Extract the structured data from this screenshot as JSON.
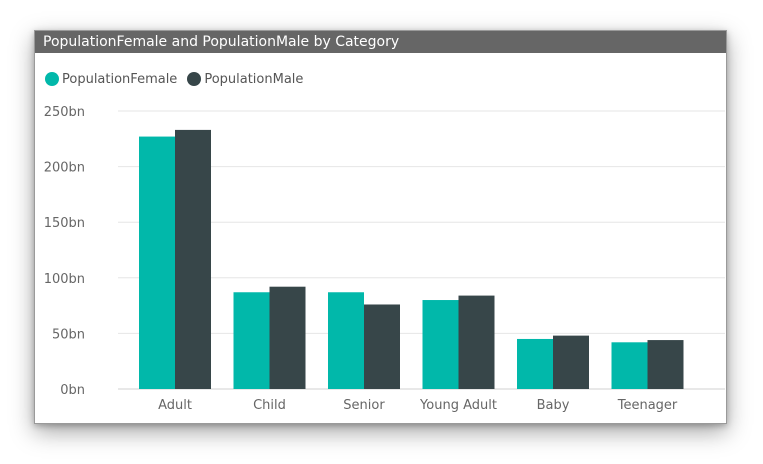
{
  "title": "PopulationFemale and PopulationMale by Category",
  "legend": [
    {
      "label": "PopulationFemale",
      "color": "#01B8AA"
    },
    {
      "label": "PopulationMale",
      "color": "#374649"
    }
  ],
  "chart_data": {
    "type": "bar",
    "title": "PopulationFemale and PopulationMale by Category",
    "categories": [
      "Adult",
      "Child",
      "Senior",
      "Young Adult",
      "Baby",
      "Teenager"
    ],
    "series": [
      {
        "name": "PopulationFemale",
        "color": "#01B8AA",
        "values": [
          227,
          87,
          87,
          80,
          45,
          42
        ]
      },
      {
        "name": "PopulationMale",
        "color": "#374649",
        "values": [
          233,
          92,
          76,
          84,
          48,
          44
        ]
      }
    ],
    "ylim": [
      0,
      250
    ],
    "yticks": [
      0,
      50,
      100,
      150,
      200,
      250
    ],
    "ytick_labels": [
      "0bn",
      "50bn",
      "100bn",
      "150bn",
      "200bn",
      "250bn"
    ],
    "ylabel": "",
    "xlabel": "",
    "legend_position": "top-left",
    "grid": true
  }
}
